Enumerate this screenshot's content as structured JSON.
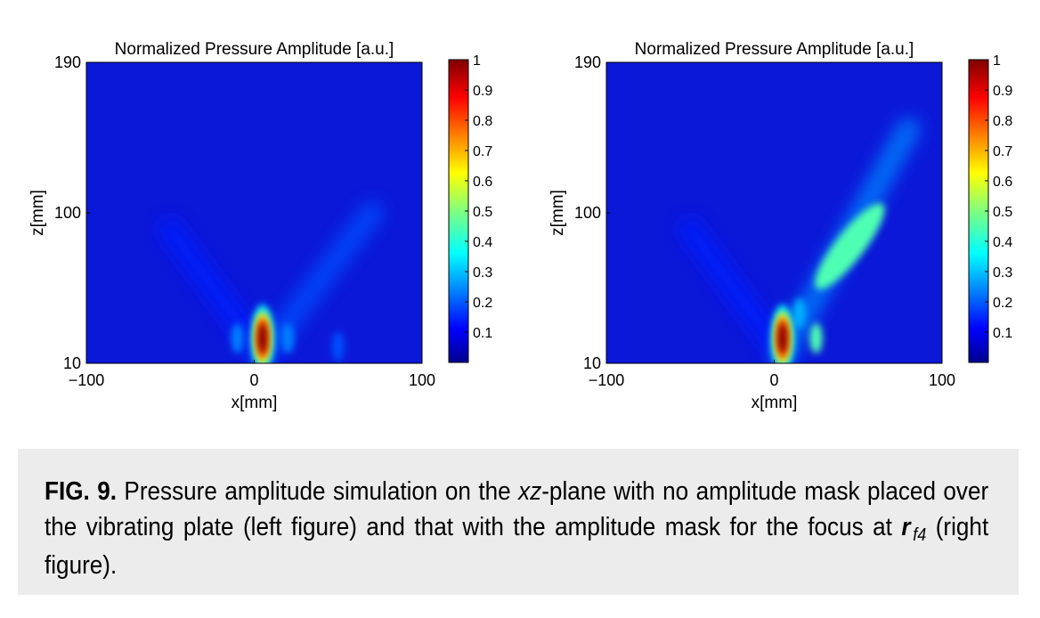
{
  "chart_data": [
    {
      "type": "heatmap",
      "title": "Normalized Pressure Amplitude [a.u.]",
      "xlabel": "x[mm]",
      "ylabel": "z[mm]",
      "xlim": [
        -100,
        100
      ],
      "ylim": [
        10,
        190
      ],
      "x_ticks": [
        "−100",
        "0",
        "100"
      ],
      "y_ticks": [
        "10",
        "100",
        "190"
      ],
      "colorbar": {
        "ticks": [
          "0.1",
          "0.2",
          "0.3",
          "0.4",
          "0.5",
          "0.6",
          "0.7",
          "0.8",
          "0.9",
          "1"
        ],
        "range": [
          0,
          1
        ],
        "colormap": "jet"
      },
      "features": [
        {
          "kind": "focus",
          "x": 5,
          "z": 25,
          "value": 1.0
        },
        {
          "kind": "side-lobe",
          "x": -10,
          "z": 25,
          "value": 0.25
        },
        {
          "kind": "side-lobe",
          "x": 20,
          "z": 25,
          "value": 0.25
        },
        {
          "kind": "side-lobe",
          "x": 50,
          "z": 20,
          "value": 0.2
        },
        {
          "kind": "beam",
          "x_start": 5,
          "z_start": 15,
          "x_end": 70,
          "z_end": 100,
          "value": 0.2
        },
        {
          "kind": "beam",
          "x_start": 5,
          "z_start": 15,
          "x_end": -50,
          "z_end": 90,
          "value": 0.15
        }
      ]
    },
    {
      "type": "heatmap",
      "title": "Normalized Pressure Amplitude [a.u.]",
      "xlabel": "x[mm]",
      "ylabel": "z[mm]",
      "xlim": [
        -100,
        100
      ],
      "ylim": [
        10,
        190
      ],
      "x_ticks": [
        "−100",
        "0",
        "100"
      ],
      "y_ticks": [
        "10",
        "100",
        "190"
      ],
      "colorbar": {
        "ticks": [
          "0.1",
          "0.2",
          "0.3",
          "0.4",
          "0.5",
          "0.6",
          "0.7",
          "0.8",
          "0.9",
          "1"
        ],
        "range": [
          0,
          1
        ],
        "colormap": "jet"
      },
      "features": [
        {
          "kind": "focus",
          "x": 5,
          "z": 25,
          "value": 1.0
        },
        {
          "kind": "side-lobe",
          "x": 25,
          "z": 25,
          "value": 0.45
        },
        {
          "kind": "side-lobe",
          "x": 15,
          "z": 40,
          "value": 0.3
        },
        {
          "kind": "elongated-lobe",
          "x": 45,
          "z": 80,
          "value": 0.45
        },
        {
          "kind": "beam",
          "x_start": 5,
          "z_start": 15,
          "x_end": 80,
          "z_end": 150,
          "value": 0.25
        },
        {
          "kind": "beam",
          "x_start": 5,
          "z_start": 15,
          "x_end": -50,
          "z_end": 90,
          "value": 0.15
        }
      ]
    }
  ],
  "caption": {
    "fig_label": "FIG. 9.",
    "text_before_italic": " Pressure amplitude simulation on the ",
    "italic_term": "xz",
    "text_after_italic": "-plane with no amplitude mask placed over the vibrating plate (left figure) and that with the amplitude mask for the focus at ",
    "symbol": "r",
    "subscript": "f4",
    "text_end": " (right figure)."
  }
}
